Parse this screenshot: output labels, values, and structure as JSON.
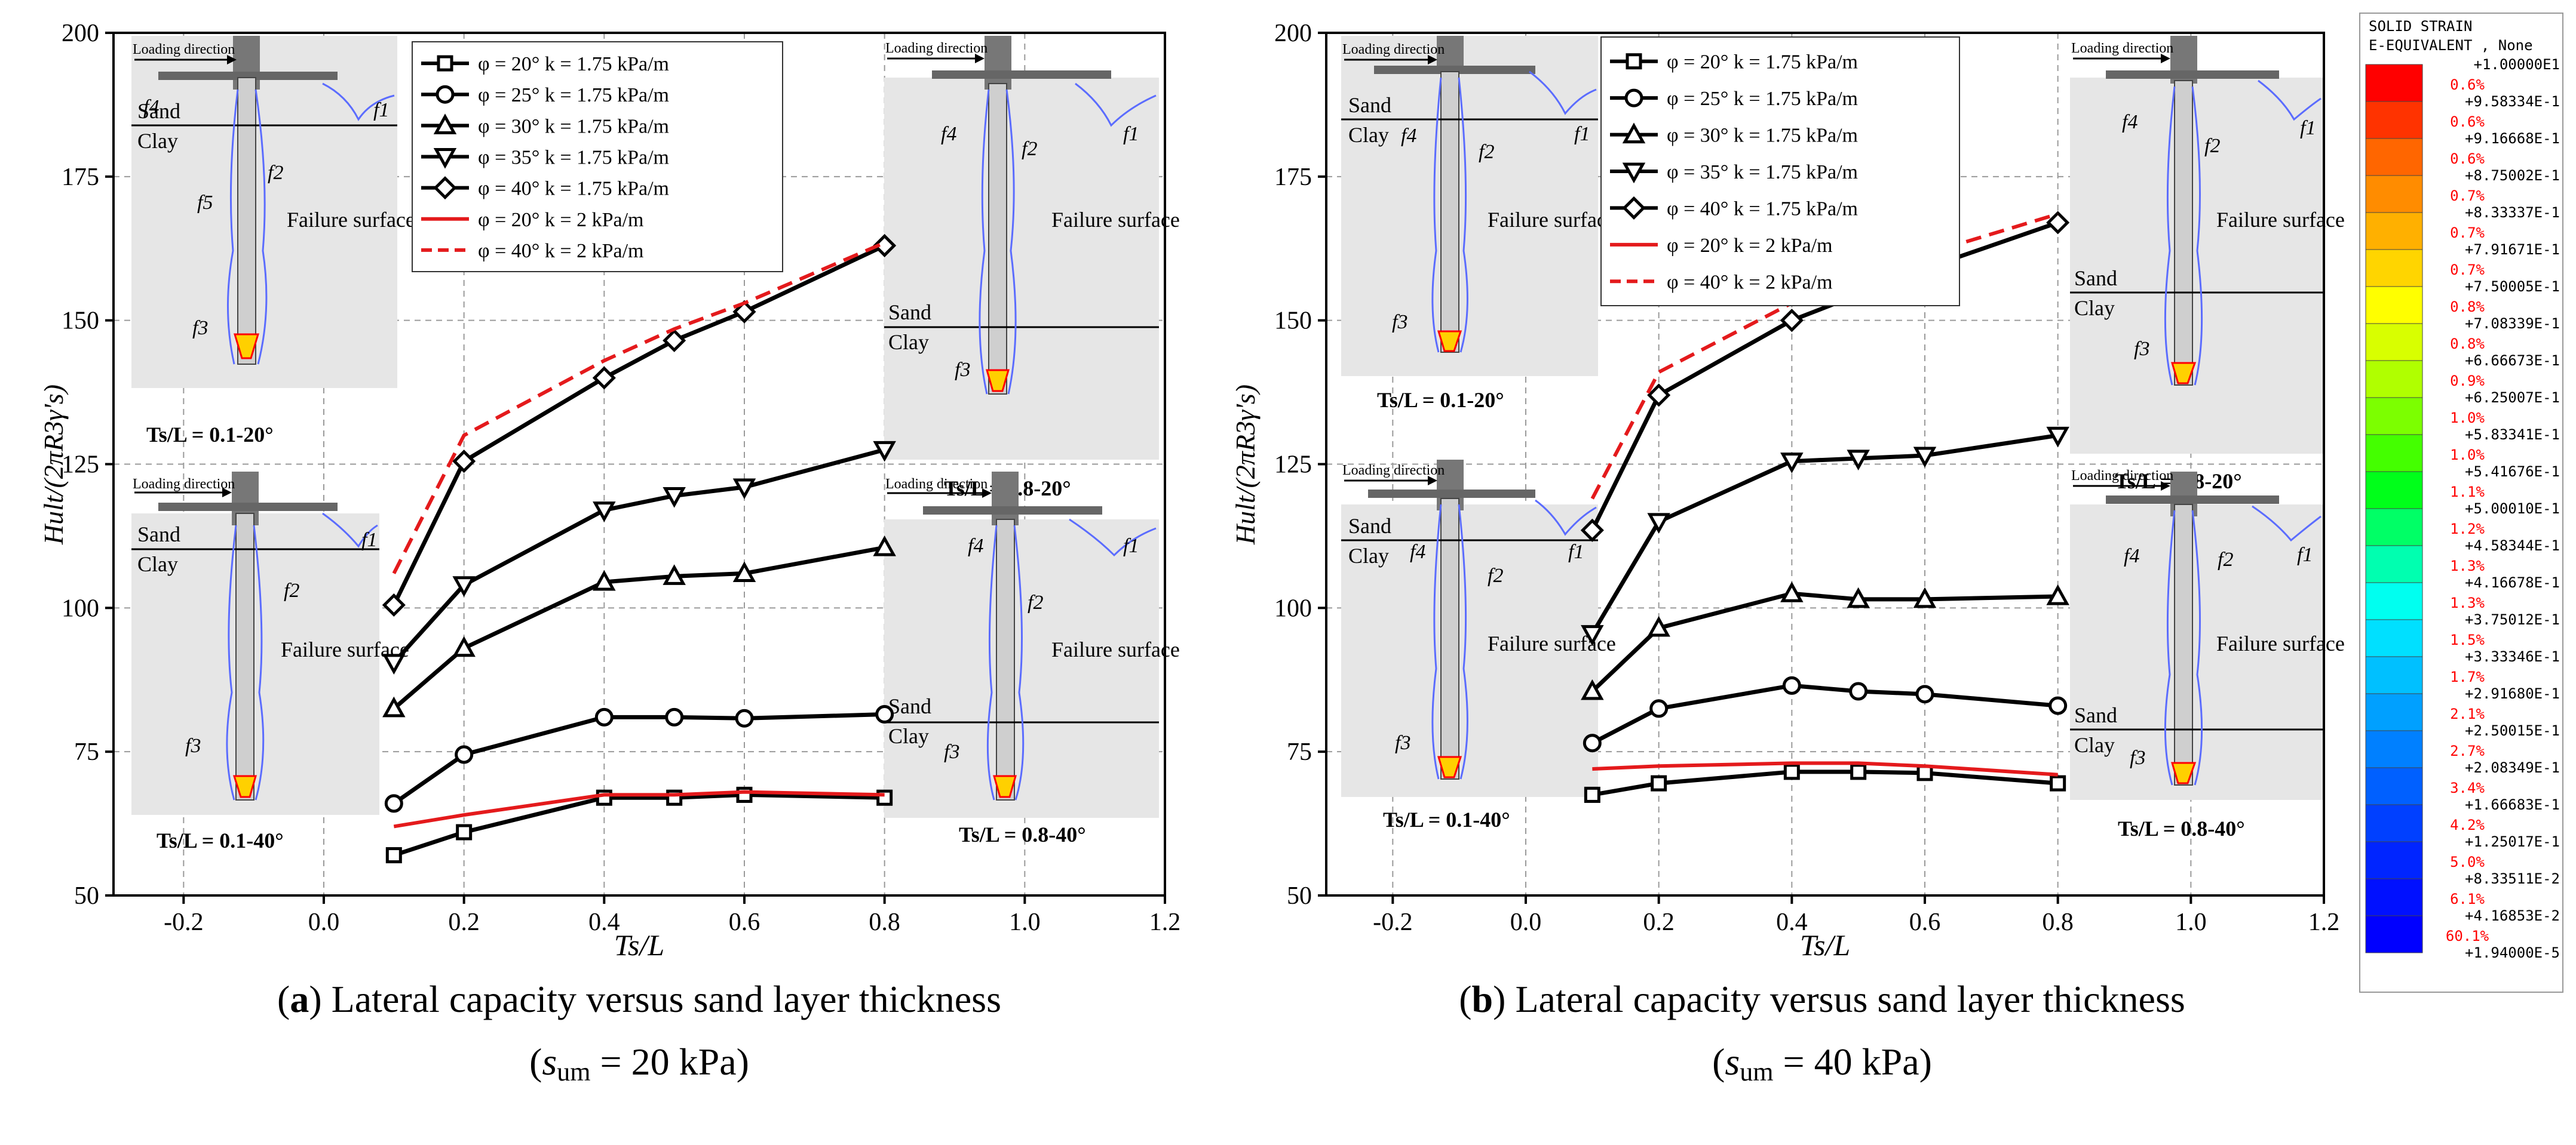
{
  "chart_data": [
    {
      "type": "line",
      "panel": "a",
      "caption_line1": "Lateral capacity versus sand layer thickness",
      "caption_line2": "(s_um = 20 kPa)",
      "caption_label": "a",
      "caption_condition": "um = 20 kPa",
      "xlabel": "Ts/L",
      "ylabel": "Hult/(2πR3γ's)",
      "xlim": [
        -0.3,
        1.2
      ],
      "ylim": [
        50,
        200
      ],
      "xticks": [
        "-0.2",
        "0.0",
        "0.2",
        "0.4",
        "0.6",
        "0.8",
        "1.0",
        "1.2"
      ],
      "yticks": [
        "50",
        "75",
        "100",
        "125",
        "150",
        "175",
        "200"
      ],
      "grid": true,
      "legend_position": "top-center",
      "series": [
        {
          "name": "φ = 20° k = 1.75 kPa/m",
          "marker": "square",
          "style": "solid",
          "color": "#000000",
          "x": [
            0.1,
            0.2,
            0.4,
            0.5,
            0.6,
            0.8
          ],
          "y": [
            57,
            61,
            67,
            67,
            67.5,
            67
          ]
        },
        {
          "name": "φ = 25° k = 1.75 kPa/m",
          "marker": "circle",
          "style": "solid",
          "color": "#000000",
          "x": [
            0.1,
            0.2,
            0.4,
            0.5,
            0.6,
            0.8
          ],
          "y": [
            66,
            74.5,
            81,
            81,
            80.8,
            81.5
          ]
        },
        {
          "name": "φ = 30° k = 1.75 kPa/m",
          "marker": "triangle-up",
          "style": "solid",
          "color": "#000000",
          "x": [
            0.1,
            0.2,
            0.4,
            0.5,
            0.6,
            0.8
          ],
          "y": [
            82.5,
            93,
            104.5,
            105.5,
            106,
            110.5
          ]
        },
        {
          "name": "φ = 35° k = 1.75 kPa/m",
          "marker": "triangle-down",
          "style": "solid",
          "color": "#000000",
          "x": [
            0.1,
            0.2,
            0.4,
            0.5,
            0.6,
            0.8
          ],
          "y": [
            90.5,
            104,
            117,
            119.5,
            121,
            127.5
          ]
        },
        {
          "name": "φ = 40° k = 1.75 kPa/m",
          "marker": "diamond",
          "style": "solid",
          "color": "#000000",
          "x": [
            0.1,
            0.2,
            0.4,
            0.5,
            0.6,
            0.8
          ],
          "y": [
            100.5,
            125.5,
            140,
            146.5,
            151.5,
            163
          ]
        },
        {
          "name": "φ = 20° k = 2 kPa/m",
          "marker": "none",
          "style": "solid",
          "color": "#e41a1c",
          "x": [
            0.1,
            0.2,
            0.4,
            0.5,
            0.6,
            0.8
          ],
          "y": [
            62,
            64,
            67.5,
            67.5,
            68,
            67.5
          ]
        },
        {
          "name": "φ = 40° k = 2 kPa/m",
          "marker": "none",
          "style": "dashed",
          "color": "#e41a1c",
          "x": [
            0.1,
            0.2,
            0.4,
            0.5,
            0.6,
            0.8
          ],
          "y": [
            106,
            130,
            143,
            148.5,
            153,
            163.5
          ]
        }
      ],
      "insets": [
        {
          "label": "Ts/L = 0.1-20°",
          "sand_label": "Sand",
          "clay_label": "Clay",
          "failure_label": "Failure surface",
          "loading_label": "Loading direction",
          "f_labels": [
            "f4",
            "f1",
            "f2",
            "f5",
            "f3"
          ]
        },
        {
          "label": "Ts/L = 0.1-40°",
          "sand_label": "Sand",
          "clay_label": "Clay",
          "failure_label": "Failure surface",
          "loading_label": "Loading direction",
          "f_labels": [
            "f1",
            "f2",
            "f3"
          ]
        },
        {
          "label": "Ts/L = 0.8-20°",
          "sand_label": "Sand",
          "clay_label": "Clay",
          "failure_label": "Failure surface",
          "loading_label": "Loading direction",
          "f_labels": [
            "f4",
            "f2",
            "f1",
            "f3"
          ]
        },
        {
          "label": "Ts/L = 0.8-40°",
          "sand_label": "Sand",
          "clay_label": "Clay",
          "failure_label": "Failure surface",
          "loading_label": "Loading direction",
          "f_labels": [
            "f4",
            "f1",
            "f2",
            "f3"
          ]
        }
      ]
    },
    {
      "type": "line",
      "panel": "b",
      "caption_line1": "Lateral capacity versus sand layer thickness",
      "caption_line2": "(s_um = 40 kPa)",
      "caption_label": "b",
      "caption_condition": "um = 40 kPa",
      "xlabel": "Ts/L",
      "ylabel": "Hult/(2πR3γ's)",
      "xlim": [
        -0.3,
        1.2
      ],
      "ylim": [
        50,
        200
      ],
      "xticks": [
        "-0.2",
        "0.0",
        "0.2",
        "0.4",
        "0.6",
        "0.8",
        "1.0",
        "1.2"
      ],
      "yticks": [
        "50",
        "75",
        "100",
        "125",
        "150",
        "175",
        "200"
      ],
      "grid": true,
      "legend_position": "top-center",
      "series": [
        {
          "name": "φ = 20° k = 1.75 kPa/m",
          "marker": "square",
          "style": "solid",
          "color": "#000000",
          "x": [
            0.1,
            0.2,
            0.4,
            0.5,
            0.6,
            0.8
          ],
          "y": [
            67.5,
            69.5,
            71.5,
            71.5,
            71.3,
            69.5
          ]
        },
        {
          "name": "φ = 25° k = 1.75 kPa/m",
          "marker": "circle",
          "style": "solid",
          "color": "#000000",
          "x": [
            0.1,
            0.2,
            0.4,
            0.5,
            0.6,
            0.8
          ],
          "y": [
            76.5,
            82.5,
            86.5,
            85.5,
            85,
            83
          ]
        },
        {
          "name": "φ = 30° k = 1.75 kPa/m",
          "marker": "triangle-up",
          "style": "solid",
          "color": "#000000",
          "x": [
            0.1,
            0.2,
            0.4,
            0.5,
            0.6,
            0.8
          ],
          "y": [
            85.5,
            96.5,
            102.5,
            101.5,
            101.5,
            102
          ]
        },
        {
          "name": "φ = 35° k = 1.75 kPa/m",
          "marker": "triangle-down",
          "style": "solid",
          "color": "#000000",
          "x": [
            0.1,
            0.2,
            0.4,
            0.5,
            0.6,
            0.8
          ],
          "y": [
            95.5,
            115,
            125.5,
            126,
            126.5,
            130
          ]
        },
        {
          "name": "φ = 40° k = 1.75 kPa/m",
          "marker": "diamond",
          "style": "solid",
          "color": "#000000",
          "x": [
            0.1,
            0.2,
            0.4,
            0.5,
            0.6,
            0.8
          ],
          "y": [
            113.5,
            137,
            150,
            154.5,
            159,
            167
          ]
        },
        {
          "name": "φ = 20° k = 2 kPa/m",
          "marker": "none",
          "style": "solid",
          "color": "#e41a1c",
          "x": [
            0.1,
            0.2,
            0.4,
            0.5,
            0.6,
            0.8
          ],
          "y": [
            72,
            72.5,
            73,
            73,
            72.5,
            71
          ]
        },
        {
          "name": "φ = 40° k = 2 kPa/m",
          "marker": "none",
          "style": "dashed",
          "color": "#e41a1c",
          "x": [
            0.1,
            0.2,
            0.4,
            0.5,
            0.6,
            0.8
          ],
          "y": [
            119,
            141,
            153,
            157.5,
            161.5,
            168.5
          ]
        }
      ],
      "insets": [
        {
          "label": "Ts/L = 0.1-20°",
          "sand_label": "Sand",
          "clay_label": "Clay",
          "failure_label": "Failure surface",
          "loading_label": "Loading direction",
          "f_labels": [
            "f4",
            "f2",
            "f1",
            "f3"
          ]
        },
        {
          "label": "Ts/L = 0.1-40°",
          "sand_label": "Sand",
          "clay_label": "Clay",
          "failure_label": "Failure surface",
          "loading_label": "Loading direction",
          "f_labels": [
            "f4",
            "f2",
            "f1",
            "f3"
          ]
        },
        {
          "label": "Ts/L = 0.8-20°",
          "sand_label": "Sand",
          "clay_label": "Clay",
          "failure_label": "Failure surface",
          "loading_label": "Loading direction",
          "f_labels": [
            "f4",
            "f2",
            "f1",
            "f3"
          ]
        },
        {
          "label": "Ts/L = 0.8-40°",
          "sand_label": "Sand",
          "clay_label": "Clay",
          "failure_label": "Failure surface",
          "loading_label": "Loading direction",
          "f_labels": [
            "f4",
            "f2",
            "f1",
            "f3"
          ]
        }
      ]
    }
  ],
  "colorbar": {
    "title_line1": "SOLID STRAIN",
    "title_line2": "E-EQUIVALENT , None",
    "values": [
      "+1.00000E1",
      "+9.58334E-1",
      "+9.16668E-1",
      "+8.75002E-1",
      "+8.33337E-1",
      "+7.91671E-1",
      "+7.50005E-1",
      "+7.08339E-1",
      "+6.66673E-1",
      "+6.25007E-1",
      "+5.83341E-1",
      "+5.41676E-1",
      "+5.00010E-1",
      "+4.58344E-1",
      "+4.16678E-1",
      "+3.75012E-1",
      "+3.33346E-1",
      "+2.91680E-1",
      "+2.50015E-1",
      "+2.08349E-1",
      "+1.66683E-1",
      "+1.25017E-1",
      "+8.33511E-2",
      "+4.16853E-2",
      "+1.94000E-5"
    ],
    "percents": [
      "0.6%",
      "0.6%",
      "0.6%",
      "0.7%",
      "0.7%",
      "0.7%",
      "0.8%",
      "0.8%",
      "0.9%",
      "1.0%",
      "1.0%",
      "1.1%",
      "1.2%",
      "1.3%",
      "1.3%",
      "1.5%",
      "1.7%",
      "2.1%",
      "2.7%",
      "3.4%",
      "4.2%",
      "5.0%",
      "6.1%",
      "60.1%"
    ],
    "colors": [
      "#ff0000",
      "#ff3300",
      "#ff6600",
      "#ff8c00",
      "#ffb000",
      "#ffd500",
      "#ffff00",
      "#d8ff00",
      "#b0ff00",
      "#7cff00",
      "#44ff00",
      "#00ff1a",
      "#00ff66",
      "#00ffb0",
      "#00fff0",
      "#00e0ff",
      "#00c0ff",
      "#00a0ff",
      "#0080ff",
      "#0060ff",
      "#0040ff",
      "#0025ff",
      "#0010ff",
      "#0000ff"
    ]
  }
}
